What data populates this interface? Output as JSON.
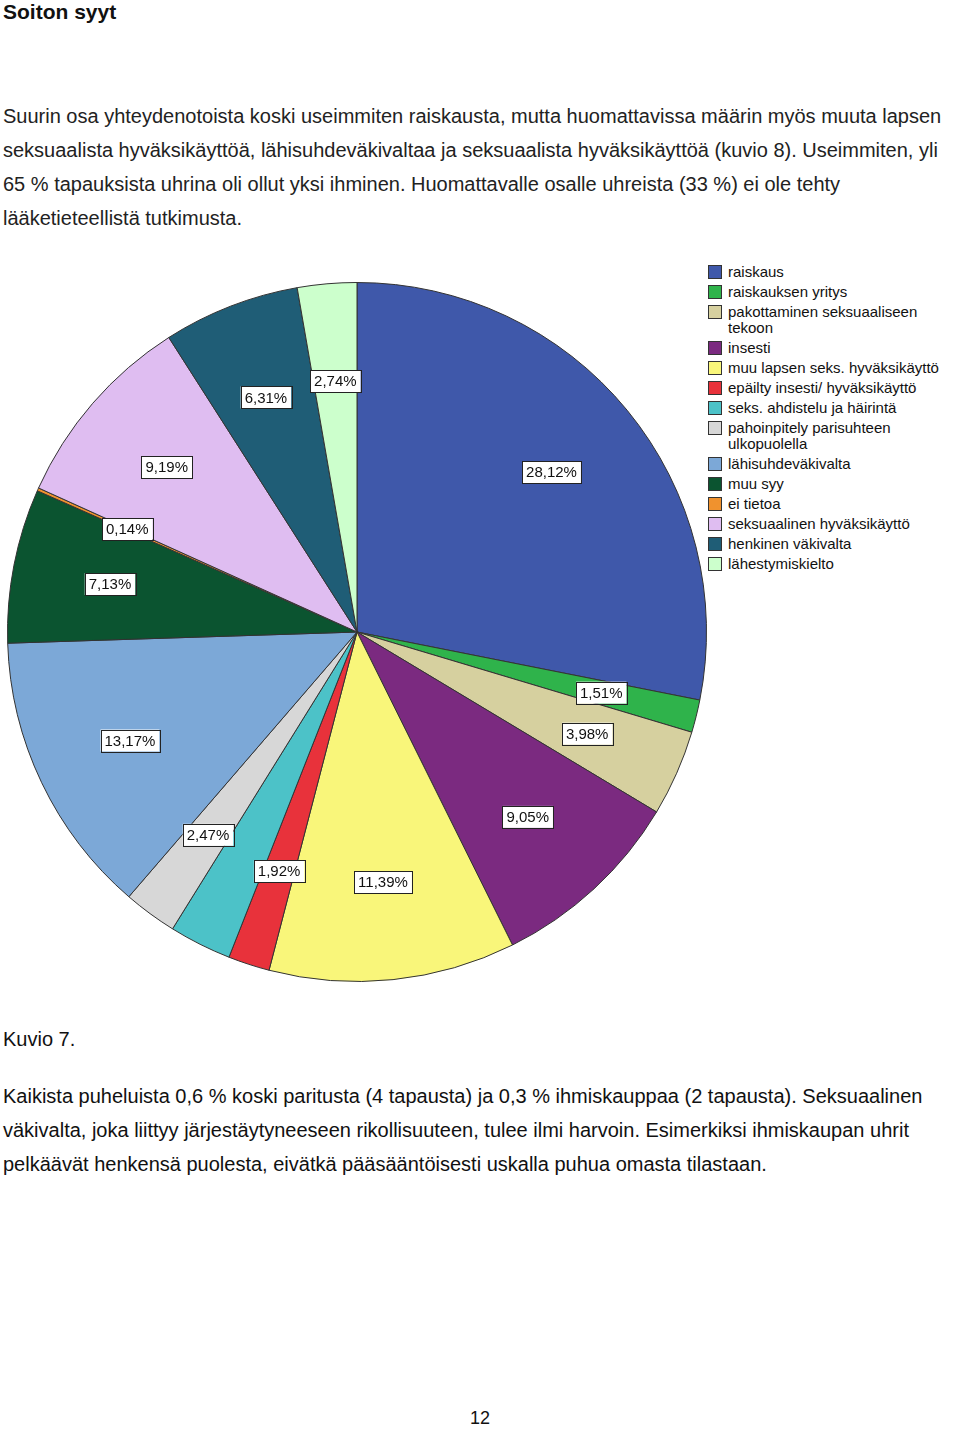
{
  "document": {
    "heading": "Soiton syyt",
    "intro": "Suurin osa yhteydenotoista koski useimmiten raiskausta, mutta huomattavissa määrin myös muuta lapsen seksuaalista hyväksikäyttöä, lähisuhdeväkivaltaa ja seksuaalista hyväksikäyttöä (kuvio 8). Useimmiten, yli 65 % tapauksista uhrina oli ollut yksi ihminen. Huomattavalle osalle uhreista (33 %) ei ole tehty lääketieteellistä tutkimusta.",
    "caption": "Kuvio 7.",
    "closing": "Kaikista puheluista 0,6 % koski paritusta (4 tapausta) ja 0,3 % ihmiskauppaa (2 tapausta). Seksuaalinen väkivalta, joka liittyy järjestäytyneeseen rikollisuuteen, tulee ilmi harvoin. Esimerkiksi ihmiskaupan uhrit pelkäävät henkensä puolesta, eivätkä pääsääntöisesti uskalla puhua omasta tilastaan.",
    "page_number": "12"
  },
  "chart_data": {
    "type": "pie",
    "categories": [
      "raiskaus",
      "raiskauksen yritys",
      "pakottaminen seksuaaliseen tekoon",
      "insesti",
      "muu lapsen seks. hyväksikäyttö",
      "epäilty insesti/ hyväksikäyttö",
      "seks. ahdistelu ja häirintä",
      "pahoinpitely parisuhteen ulkopuolella",
      "lähisuhdeväkivalta",
      "muu syy",
      "ei tietoa",
      "seksuaalinen hyväksikäyttö",
      "henkinen väkivalta",
      "lähestymiskielto"
    ],
    "values": [
      28.12,
      1.51,
      3.98,
      9.05,
      11.39,
      1.92,
      2.88,
      2.47,
      13.17,
      7.13,
      0.14,
      9.19,
      6.31,
      2.74
    ],
    "value_labels": [
      "28,12%",
      "1,51%",
      "3,98%",
      "9,05%",
      "11,39%",
      "1,92%",
      null,
      "2,47%",
      "13,17%",
      "7,13%",
      "0,14%",
      "9,19%",
      "6,31%",
      "2,74%"
    ],
    "colors": [
      "#3f58aa",
      "#2fb34b",
      "#d6d09f",
      "#7b2a80",
      "#f9f67a",
      "#e8323b",
      "#4cc2c8",
      "#d7d7d7",
      "#7ca8d7",
      "#0b5430",
      "#f0922e",
      "#dfbdf1",
      "#1f5d76",
      "#ccffcc"
    ],
    "data_labels": true,
    "legend": "right"
  }
}
